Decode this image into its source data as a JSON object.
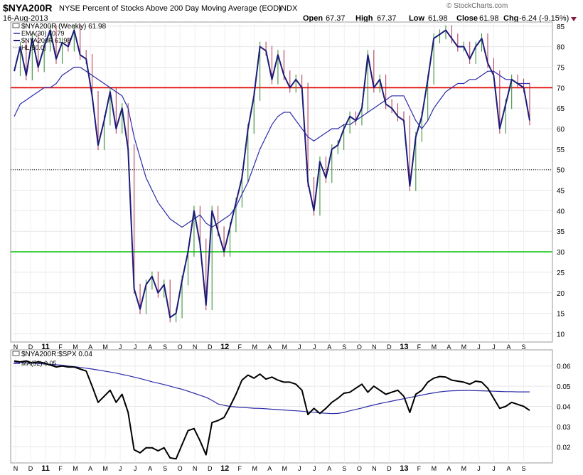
{
  "header": {
    "symbol": "$NYA200R",
    "title": "NYSE Percent of Stocks Above 200 Day Moving Average (EOD)",
    "exchange": "INDX",
    "date": "16-Aug-2013",
    "open_label": "Open",
    "open_value": "67.37",
    "high_label": "High",
    "high_value": "67.37",
    "low_label": "Low",
    "low_value": "61.98",
    "close_label": "Close",
    "close_value": "61.98",
    "chg_label": "Chg",
    "chg_value": "-6.24 (-9.15%)",
    "chg_icon": "down-triangle-icon",
    "copyright": "© StockCharts.com"
  },
  "colors": {
    "price": "#1c1c7a",
    "ema": "#2a2aa8",
    "line70": "#e0201b",
    "line30": "#2ecc2e",
    "hl50": "#000000",
    "bar_up": "#2a8a2a",
    "bar_down": "#b03050",
    "ratio": "#000000",
    "ma52": "#2a2aa8"
  },
  "chart_data": [
    {
      "type": "line",
      "panel": "main",
      "legend": [
        {
          "label": "$NYA200R (Weekly) 61.98"
        },
        {
          "label": "EMA(30) 70.79"
        },
        {
          "label": "$NYA200R 61.98"
        },
        {
          "label": "HL(50.0)"
        }
      ],
      "ylim": [
        8,
        86
      ],
      "y_ticks": [
        "85",
        "80",
        "75",
        "70",
        "65",
        "60",
        "55",
        "50",
        "45",
        "40",
        "35",
        "30",
        "25",
        "20",
        "15",
        "10"
      ],
      "x_ticks": [
        "N",
        "D",
        "11",
        "F",
        "M",
        "A",
        "M",
        "J",
        "J",
        "A",
        "S",
        "O",
        "N",
        "D",
        "12",
        "F",
        "M",
        "A",
        "M",
        "J",
        "J",
        "A",
        "S",
        "O",
        "N",
        "D",
        "13",
        "F",
        "M",
        "A",
        "M",
        "J",
        "J",
        "A",
        "S"
      ],
      "hlines": [
        70,
        30,
        50
      ],
      "series": [
        {
          "name": "$NYA200R",
          "values": [
            74,
            80,
            73,
            82,
            75,
            80,
            84,
            77,
            81,
            80,
            84,
            78,
            77,
            68,
            56,
            62,
            69,
            60,
            65,
            55,
            21,
            16,
            22,
            24,
            20,
            22,
            14,
            15,
            23,
            30,
            40,
            32,
            17,
            40,
            35,
            30,
            36,
            42,
            48,
            60,
            68,
            80,
            79,
            72,
            78,
            73,
            70,
            72,
            70,
            47,
            40,
            52,
            48,
            55,
            56,
            60,
            63,
            62,
            65,
            78,
            70,
            72,
            66,
            65,
            63,
            62,
            46,
            58,
            63,
            72,
            82,
            83,
            84,
            82,
            80,
            80,
            77,
            80,
            82,
            76,
            73,
            60,
            66,
            72,
            71,
            70,
            62
          ]
        },
        {
          "name": "EMA(30)",
          "values": [
            63,
            66,
            67,
            68,
            69,
            70,
            70,
            71,
            73,
            74,
            75,
            75,
            74,
            73,
            72,
            71,
            70,
            69,
            68,
            65,
            58,
            53,
            48,
            45,
            42,
            40,
            38,
            37,
            36,
            37,
            38,
            39,
            37,
            36,
            37,
            38,
            39,
            41,
            44,
            47,
            51,
            55,
            58,
            61,
            63,
            64,
            64,
            62,
            60,
            58,
            57,
            58,
            59,
            60,
            60,
            61,
            61,
            62,
            63,
            64,
            65,
            66,
            67,
            68,
            68,
            68,
            65,
            62,
            60,
            62,
            65,
            67,
            69,
            70,
            71,
            71,
            72,
            72,
            73,
            74,
            74,
            73,
            72,
            72,
            71,
            71,
            71
          ]
        }
      ]
    },
    {
      "type": "line",
      "panel": "ratio",
      "legend": [
        {
          "label": "$NYA200R:$SPX 0.04"
        },
        {
          "label": "MA(52) 0.05"
        }
      ],
      "ylim": [
        0.012,
        0.068
      ],
      "y_ticks": [
        "0.06",
        "0.05",
        "0.04",
        "0.03",
        "0.02"
      ],
      "x_ticks": [
        "N",
        "D",
        "11",
        "F",
        "M",
        "A",
        "M",
        "J",
        "J",
        "A",
        "S",
        "O",
        "N",
        "D",
        "12",
        "F",
        "M",
        "A",
        "M",
        "J",
        "J",
        "A",
        "S",
        "O",
        "N",
        "D",
        "13",
        "F",
        "M",
        "A",
        "M",
        "J",
        "J",
        "A",
        "S"
      ],
      "series": [
        {
          "name": "$NYA200R:$SPX",
          "values": [
            0.0625,
            0.062,
            0.0625,
            0.0615,
            0.062,
            0.0615,
            0.0605,
            0.0595,
            0.06,
            0.0595,
            0.0595,
            0.0585,
            0.0575,
            0.05,
            0.042,
            0.045,
            0.048,
            0.042,
            0.046,
            0.037,
            0.0185,
            0.017,
            0.0195,
            0.0195,
            0.018,
            0.0195,
            0.0145,
            0.014,
            0.021,
            0.028,
            0.029,
            0.023,
            0.016,
            0.032,
            0.033,
            0.0345,
            0.04,
            0.046,
            0.053,
            0.0555,
            0.054,
            0.056,
            0.0535,
            0.0545,
            0.053,
            0.052,
            0.052,
            0.051,
            0.048,
            0.036,
            0.039,
            0.0365,
            0.039,
            0.042,
            0.044,
            0.0465,
            0.047,
            0.049,
            0.051,
            0.047,
            0.05,
            0.048,
            0.046,
            0.047,
            0.048,
            0.045,
            0.037,
            0.046,
            0.048,
            0.052,
            0.054,
            0.0548,
            0.0545,
            0.053,
            0.0525,
            0.052,
            0.051,
            0.0525,
            0.052,
            0.049,
            0.044,
            0.039,
            0.04,
            0.042,
            0.041,
            0.04,
            0.038
          ]
        },
        {
          "name": "MA(52)",
          "values": [
            0.062,
            0.0618,
            0.0616,
            0.0614,
            0.0612,
            0.061,
            0.0608,
            0.0606,
            0.0604,
            0.06,
            0.0597,
            0.0593,
            0.0589,
            0.0585,
            0.058,
            0.0575,
            0.057,
            0.0565,
            0.0558,
            0.0552,
            0.0545,
            0.0538,
            0.053,
            0.0522,
            0.0515,
            0.0508,
            0.05,
            0.0492,
            0.0485,
            0.0475,
            0.0465,
            0.0455,
            0.0445,
            0.043,
            0.0412,
            0.0405,
            0.04,
            0.0397,
            0.0395,
            0.0393,
            0.0391,
            0.039,
            0.0388,
            0.0386,
            0.0384,
            0.0382,
            0.038,
            0.0378,
            0.0376,
            0.0373,
            0.0371,
            0.0368,
            0.0366,
            0.0364,
            0.0365,
            0.037,
            0.0378,
            0.0385,
            0.0392,
            0.04,
            0.0407,
            0.0414,
            0.042,
            0.0426,
            0.0432,
            0.0438,
            0.0444,
            0.045,
            0.0456,
            0.0462,
            0.0467,
            0.0472,
            0.0475,
            0.0477,
            0.0478,
            0.0479,
            0.0479,
            0.0478,
            0.0477,
            0.0476,
            0.0475,
            0.0474,
            0.0473,
            0.0473,
            0.0472,
            0.0472,
            0.0472
          ]
        }
      ]
    }
  ]
}
